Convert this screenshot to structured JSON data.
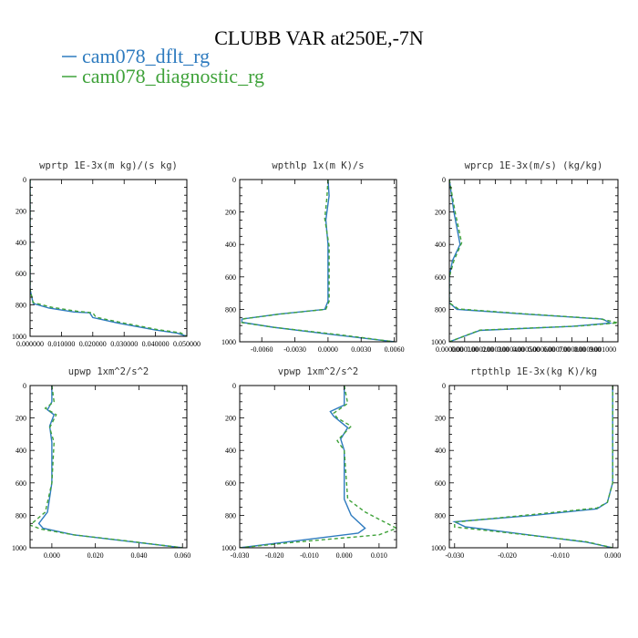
{
  "figure": {
    "title": "CLUBB VAR at250E,-7N",
    "legend": [
      {
        "label": "cam078_dflt_rg",
        "color": "#2e7bbf",
        "dash": "solid"
      },
      {
        "label": "cam078_diagnostic_rg",
        "color": "#3fa23a",
        "dash": "dashed"
      }
    ]
  },
  "chart_data": [
    {
      "type": "line",
      "title": "wprtp  1E-3x(m kg)/(s kg)",
      "xlim": [
        0,
        0.05
      ],
      "ylim": [
        0,
        1000
      ],
      "y_inverted": true,
      "xticks": [
        0,
        0.01,
        0.02,
        0.03,
        0.04,
        0.05
      ],
      "xtick_labels": [
        "0.000000",
        "0.010000",
        "0.020000",
        "0.030000",
        "0.040000",
        "0.050000"
      ],
      "yticks": [
        0,
        200,
        400,
        600,
        800,
        1000
      ],
      "series": [
        {
          "name": "cam078_dflt_rg",
          "x": [
            0,
            0,
            0,
            0.001,
            0.006,
            0.014,
            0.019,
            0.02,
            0.028,
            0.04,
            0.047,
            0.05
          ],
          "y": [
            0,
            300,
            700,
            790,
            820,
            845,
            850,
            880,
            915,
            960,
            980,
            1000
          ]
        },
        {
          "name": "cam078_diagnostic_rg",
          "x": [
            0,
            0,
            0,
            0.001,
            0.007,
            0.015,
            0.02,
            0.021,
            0.029,
            0.041,
            0.048,
            0.05
          ],
          "y": [
            0,
            300,
            700,
            785,
            815,
            840,
            850,
            878,
            912,
            958,
            978,
            1000
          ]
        }
      ]
    },
    {
      "type": "line",
      "title": "wpthlp  1x(m K)/s",
      "xlim": [
        -0.008,
        0.0062
      ],
      "ylim": [
        0,
        1000
      ],
      "y_inverted": true,
      "xticks": [
        -0.006,
        -0.003,
        0,
        0.003,
        0.006
      ],
      "xtick_labels": [
        "-0.0060",
        "-0.0030",
        "0.0000",
        "0.0030",
        "0.0060"
      ],
      "yticks": [
        0,
        200,
        400,
        600,
        800,
        1000
      ],
      "series": [
        {
          "name": "cam078_dflt_rg",
          "x": [
            0,
            0.0001,
            -0.0002,
            0,
            0,
            0,
            -0.0003,
            -0.0045,
            -0.0078,
            -0.0078,
            -0.005,
            0.001,
            0.006
          ],
          "y": [
            0,
            100,
            250,
            400,
            600,
            750,
            800,
            830,
            860,
            880,
            910,
            960,
            1000
          ]
        },
        {
          "name": "cam078_diagnostic_rg",
          "x": [
            0,
            -0.0001,
            -0.0003,
            0.0001,
            0.0001,
            0.0001,
            -0.0002,
            -0.0042,
            -0.0076,
            -0.0078,
            -0.0048,
            0.0012,
            0.006
          ],
          "y": [
            0,
            110,
            240,
            410,
            600,
            750,
            800,
            828,
            858,
            882,
            912,
            958,
            1000
          ]
        }
      ]
    },
    {
      "type": "line",
      "title": "wprcp  1E-3x(m/s) (kg/kg)",
      "xlim": [
        0,
        0.0011
      ],
      "ylim": [
        0,
        1000
      ],
      "y_inverted": true,
      "xticks": [
        0,
        0.0001,
        0.0002,
        0.0003,
        0.0004,
        0.0005,
        0.0006,
        0.0007,
        0.0008,
        0.0009,
        0.001
      ],
      "xtick_labels": [
        "0.000000",
        "0.000100",
        "0.000200",
        "0.000300",
        "0.000400",
        "0.000500",
        "0.000600",
        "0.000700",
        "0.000800",
        "0.000900",
        "0.001000"
      ],
      "yticks": [
        0,
        200,
        400,
        600,
        800,
        1000
      ],
      "series": [
        {
          "name": "cam078_dflt_rg",
          "x": [
            0,
            3e-05,
            7e-05,
            2e-05,
            0,
            0,
            5e-05,
            0.0005,
            0.001,
            0.00105,
            0.0008,
            0.0002,
            0
          ],
          "y": [
            0,
            200,
            400,
            500,
            600,
            760,
            800,
            830,
            860,
            885,
            905,
            930,
            1000
          ]
        },
        {
          "name": "cam078_diagnostic_rg",
          "x": [
            0,
            4e-05,
            8e-05,
            3e-05,
            0,
            0,
            6e-05,
            0.0005,
            0.00098,
            0.0011,
            0.00085,
            0.0002,
            0
          ],
          "y": [
            0,
            210,
            390,
            500,
            600,
            760,
            798,
            828,
            858,
            883,
            903,
            928,
            1000
          ]
        }
      ]
    },
    {
      "type": "line",
      "title": "upwp  1xm^2/s^2",
      "xlim": [
        -0.01,
        0.062
      ],
      "ylim": [
        0,
        1000
      ],
      "y_inverted": true,
      "xticks": [
        0,
        0.02,
        0.04,
        0.06
      ],
      "xtick_labels": [
        "0.000",
        "0.020",
        "0.040",
        "0.060"
      ],
      "yticks": [
        0,
        200,
        400,
        600,
        800,
        1000
      ],
      "series": [
        {
          "name": "cam078_dflt_rg",
          "x": [
            0,
            0,
            -0.002,
            0.001,
            -0.001,
            0,
            0,
            -0.002,
            -0.006,
            -0.004,
            0.01,
            0.035,
            0.06
          ],
          "y": [
            0,
            100,
            150,
            180,
            250,
            350,
            600,
            780,
            850,
            880,
            920,
            960,
            1000
          ]
        },
        {
          "name": "cam078_diagnostic_rg",
          "x": [
            0,
            0.001,
            -0.003,
            0.002,
            -0.001,
            0.001,
            0,
            -0.003,
            -0.01,
            -0.005,
            0.01,
            0.036,
            0.06
          ],
          "y": [
            0,
            100,
            140,
            180,
            260,
            350,
            600,
            780,
            860,
            885,
            920,
            960,
            1000
          ]
        }
      ]
    },
    {
      "type": "line",
      "title": "vpwp  1xm^2/s^2",
      "xlim": [
        -0.03,
        0.015
      ],
      "ylim": [
        0,
        1000
      ],
      "y_inverted": true,
      "xticks": [
        -0.03,
        -0.02,
        -0.01,
        0,
        0.01
      ],
      "xtick_labels": [
        "-0.030",
        "-0.020",
        "-0.010",
        "0.000",
        "0.010"
      ],
      "yticks": [
        0,
        200,
        400,
        600,
        800,
        1000
      ],
      "series": [
        {
          "name": "cam078_dflt_rg",
          "x": [
            0,
            0,
            -0.004,
            -0.003,
            0.001,
            -0.001,
            0,
            0,
            0.002,
            0.006,
            0.004,
            -0.015,
            -0.03
          ],
          "y": [
            0,
            120,
            160,
            190,
            260,
            330,
            400,
            700,
            800,
            880,
            910,
            960,
            1000
          ]
        },
        {
          "name": "cam078_diagnostic_rg",
          "x": [
            0,
            0.001,
            -0.003,
            -0.002,
            0.002,
            -0.002,
            0,
            0.001,
            0.006,
            0.015,
            0.01,
            -0.014,
            -0.03
          ],
          "y": [
            0,
            110,
            170,
            200,
            250,
            340,
            400,
            700,
            780,
            880,
            920,
            965,
            1000
          ]
        }
      ]
    },
    {
      "type": "line",
      "title": "rtpthlp  1E-3x(kg K)/kg",
      "xlim": [
        -0.031,
        0.001
      ],
      "ylim": [
        0,
        1000
      ],
      "y_inverted": true,
      "xticks": [
        -0.03,
        -0.02,
        -0.01,
        0
      ],
      "xtick_labels": [
        "-0.030",
        "-0.020",
        "-0.010",
        "0.000"
      ],
      "yticks": [
        0,
        200,
        400,
        600,
        800,
        1000
      ],
      "series": [
        {
          "name": "cam078_dflt_rg",
          "x": [
            0,
            0,
            0,
            -0.001,
            -0.003,
            -0.015,
            -0.03,
            -0.028,
            -0.016,
            -0.005,
            0
          ],
          "y": [
            0,
            300,
            600,
            720,
            760,
            800,
            840,
            870,
            920,
            965,
            1000
          ]
        },
        {
          "name": "cam078_diagnostic_rg",
          "x": [
            0,
            0,
            0,
            -0.001,
            -0.003,
            -0.016,
            -0.03,
            -0.03,
            -0.017,
            -0.005,
            0
          ],
          "y": [
            0,
            300,
            600,
            720,
            755,
            798,
            842,
            872,
            918,
            963,
            1000
          ]
        }
      ]
    }
  ]
}
